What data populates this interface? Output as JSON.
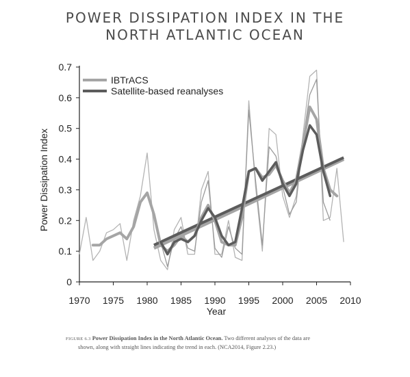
{
  "title_line1": "POWER DISSIPATION INDEX IN THE",
  "title_line2": "NORTH ATLANTIC OCEAN",
  "caption": {
    "figure_number": "FIGURE 6.3",
    "bold": "Power Dissipation Index in the North Atlantic Ocean.",
    "line1_rest": "Two different analyses of the data are",
    "line2": "shown, along with straight lines indicating the trend in each. (NCA2014, Figure 2.23.)"
  },
  "colors": {
    "ibtracs": "#a5a5a5",
    "satellite": "#5c5c5c",
    "axis": "#222222"
  },
  "chart_data": {
    "type": "line",
    "title": "",
    "xlabel": "Year",
    "ylabel": "Power Dissipation Index",
    "xlim": [
      1970,
      2010
    ],
    "ylim": [
      0,
      0.7
    ],
    "x_ticks": [
      1970,
      1975,
      1980,
      1985,
      1990,
      1995,
      2000,
      2005,
      2010
    ],
    "y_ticks": [
      0,
      0.1,
      0.2,
      0.3,
      0.4,
      0.5,
      0.6,
      0.7
    ],
    "y_tick_labels": [
      "0",
      "0.1",
      "0.2",
      "0.3",
      "0.4",
      "0.5",
      "0.6",
      "0.7"
    ],
    "legend_position": "top-left",
    "series": [
      {
        "name": "IBTrACS",
        "color": "#a5a5a5",
        "smoothed": {
          "x": [
            1972,
            1973,
            1974,
            1975,
            1976,
            1977,
            1978,
            1979,
            1980,
            1981,
            1982,
            1983,
            1984,
            1985,
            1986,
            1987,
            1988,
            1989,
            1990,
            1991,
            1992,
            1993,
            1994,
            1995,
            1996,
            1997,
            1998,
            1999,
            2000,
            2001,
            2002,
            2003,
            2004,
            2005,
            2006,
            2007,
            2008
          ],
          "y": [
            0.12,
            0.12,
            0.14,
            0.15,
            0.16,
            0.14,
            0.18,
            0.26,
            0.29,
            0.22,
            0.12,
            0.1,
            0.12,
            0.15,
            0.13,
            0.15,
            0.21,
            0.25,
            0.2,
            0.13,
            0.12,
            0.12,
            0.21,
            0.36,
            0.37,
            0.34,
            0.35,
            0.38,
            0.33,
            0.29,
            0.33,
            0.45,
            0.57,
            0.53,
            0.37,
            0.3,
            0.28
          ]
        },
        "annual": {
          "x": [
            1970,
            1971,
            1972,
            1973,
            1974,
            1975,
            1976,
            1977,
            1978,
            1979,
            1980,
            1981,
            1982,
            1983,
            1984,
            1985,
            1986,
            1987,
            1988,
            1989,
            1990,
            1991,
            1992,
            1993,
            1994,
            1995,
            1996,
            1997,
            1998,
            1999,
            2000,
            2001,
            2002,
            2003,
            2004,
            2005,
            2006,
            2007,
            2008,
            2009
          ],
          "y": [
            0.09,
            0.21,
            0.07,
            0.1,
            0.16,
            0.17,
            0.19,
            0.07,
            0.2,
            0.28,
            0.42,
            0.17,
            0.07,
            0.04,
            0.17,
            0.21,
            0.09,
            0.09,
            0.3,
            0.36,
            0.09,
            0.09,
            0.2,
            0.08,
            0.07,
            0.59,
            0.31,
            0.1,
            0.5,
            0.48,
            0.28,
            0.21,
            0.28,
            0.48,
            0.67,
            0.69,
            0.2,
            0.21,
            0.37,
            0.13
          ]
        },
        "trend": {
          "x": [
            1981,
            2009
          ],
          "y": [
            0.11,
            0.4
          ]
        }
      },
      {
        "name": "Satellite-based reanalyses",
        "color": "#5c5c5c",
        "smoothed": {
          "x": [
            1982,
            1983,
            1984,
            1985,
            1986,
            1987,
            1988,
            1989,
            1990,
            1991,
            1992,
            1993,
            1994,
            1995,
            1996,
            1997,
            1998,
            1999,
            2000,
            2001,
            2002,
            2003,
            2004,
            2005,
            2006,
            2007
          ],
          "y": [
            0.13,
            0.09,
            0.13,
            0.14,
            0.13,
            0.15,
            0.2,
            0.24,
            0.21,
            0.15,
            0.12,
            0.13,
            0.24,
            0.36,
            0.37,
            0.33,
            0.36,
            0.39,
            0.32,
            0.28,
            0.32,
            0.43,
            0.51,
            0.48,
            0.36,
            0.28
          ]
        },
        "annual": {
          "x": [
            1982,
            1983,
            1984,
            1985,
            1986,
            1987,
            1988,
            1989,
            1990,
            1991,
            1992,
            1993,
            1994,
            1995,
            1996,
            1997,
            1998,
            1999,
            2000,
            2001,
            2002,
            2003,
            2004,
            2005,
            2006,
            2007
          ],
          "y": [
            0.13,
            0.05,
            0.14,
            0.18,
            0.11,
            0.1,
            0.26,
            0.33,
            0.11,
            0.08,
            0.18,
            0.11,
            0.09,
            0.56,
            0.33,
            0.12,
            0.44,
            0.41,
            0.31,
            0.22,
            0.26,
            0.46,
            0.61,
            0.66,
            0.26,
            0.2
          ]
        },
        "trend": {
          "x": [
            1981,
            2009
          ],
          "y": [
            0.12,
            0.405
          ]
        }
      }
    ]
  }
}
